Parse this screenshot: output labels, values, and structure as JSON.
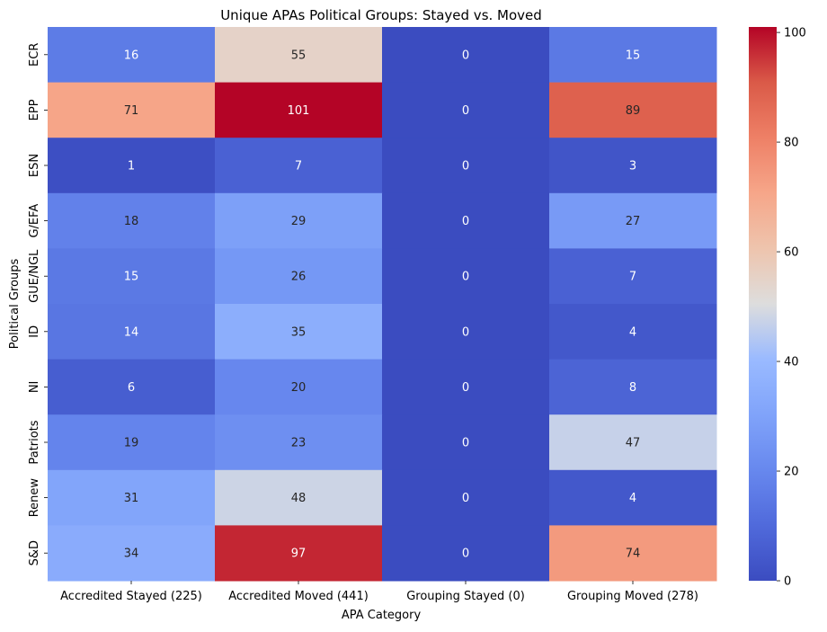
{
  "chart_data": {
    "type": "heatmap",
    "title": "Unique APAs Political Groups: Stayed vs. Moved",
    "xlabel": "APA Category",
    "ylabel": "Political Groups",
    "x_categories": [
      "Accredited Stayed (225)",
      "Accredited Moved (441)",
      "Grouping Stayed (0)",
      "Grouping Moved (278)"
    ],
    "y_categories": [
      "ECR",
      "EPP",
      "ESN",
      "G/EFA",
      "GUE/NGL",
      "ID",
      "NI",
      "Patriots",
      "Renew",
      "S&D"
    ],
    "values": [
      [
        16,
        55,
        0,
        15
      ],
      [
        71,
        101,
        0,
        89
      ],
      [
        1,
        7,
        0,
        3
      ],
      [
        18,
        29,
        0,
        27
      ],
      [
        15,
        26,
        0,
        7
      ],
      [
        14,
        35,
        0,
        4
      ],
      [
        6,
        20,
        0,
        8
      ],
      [
        19,
        23,
        0,
        47
      ],
      [
        31,
        48,
        0,
        4
      ],
      [
        34,
        97,
        0,
        74
      ]
    ],
    "colormap": "coolwarm",
    "colorbar_range": [
      0,
      101
    ],
    "colorbar_ticks": [
      0,
      20,
      40,
      60,
      80,
      100
    ],
    "annotations": true,
    "grid": false,
    "legend": "colorbar-right"
  }
}
